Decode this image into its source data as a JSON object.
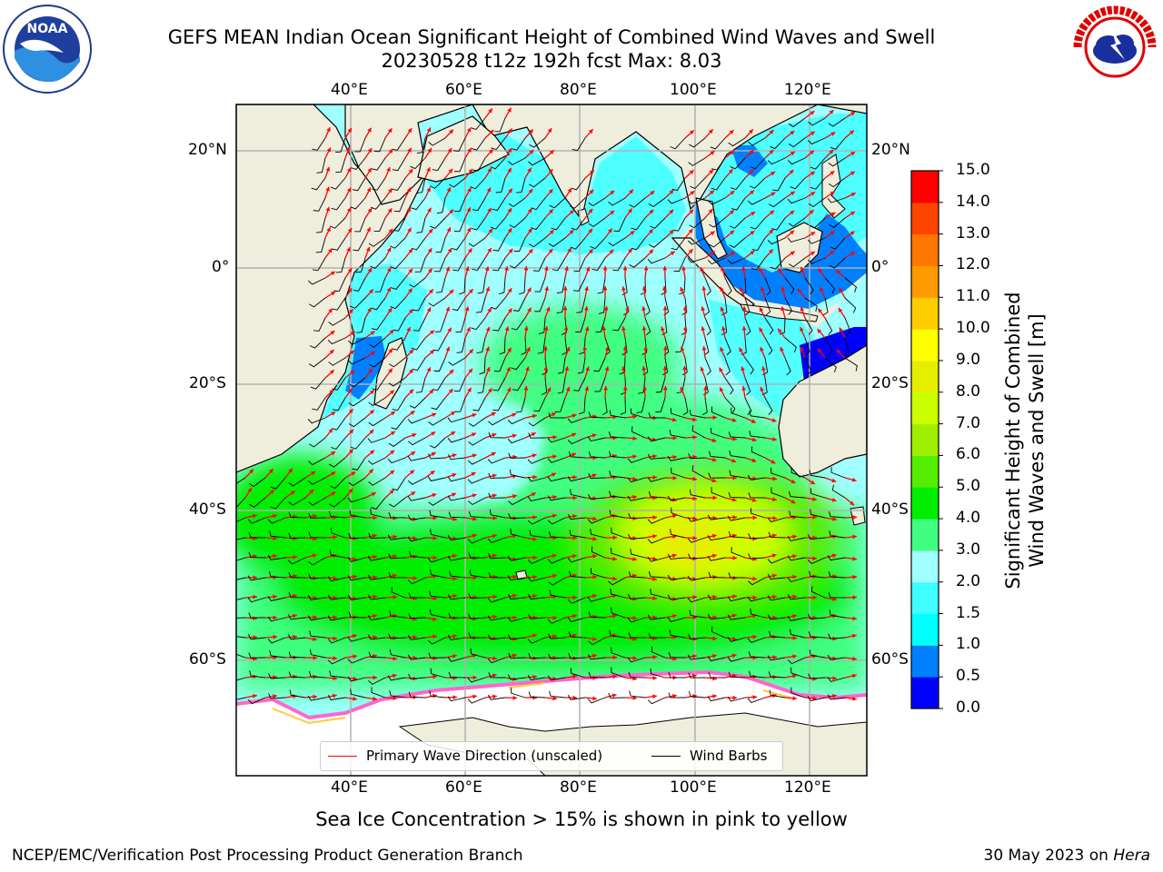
{
  "header": {
    "title_line1": "GEFS MEAN Indian Ocean Significant Height of Combined Wind Waves and Swell",
    "title_line2": "20230528 t12z 192h fcst   Max: 8.03"
  },
  "logos": {
    "left": {
      "name": "noaa-logo",
      "text": "NOAA",
      "ring_text": "NATIONAL OCEANIC AND ATMOSPHERIC ADMINISTRATION · U.S. DEPARTMENT OF COMMERCE"
    },
    "right": {
      "name": "nws-logo",
      "ring_text": "NATIONAL WEATHER SERVICE"
    }
  },
  "map": {
    "lon_ticks_top": [
      "40°E",
      "60°E",
      "80°E",
      "100°E",
      "120°E"
    ],
    "lon_ticks_bottom": [
      "40°E",
      "60°E",
      "80°E",
      "100°E",
      "120°E"
    ],
    "lat_ticks_left": [
      "20°N",
      "0°",
      "20°S",
      "40°S",
      "60°S"
    ],
    "lat_ticks_right": [
      "20°N",
      "0°",
      "20°S",
      "40°S",
      "60°S"
    ],
    "extent": {
      "lon_min": 20,
      "lon_max": 130,
      "lat_min": -78,
      "lat_max": 27
    },
    "colors": {
      "land": "#efeedc",
      "ice": "#ffffff",
      "grid": "#b0b0b0",
      "wave_arrow": "#ff0000",
      "wind_barb": "#000000"
    }
  },
  "colorbar": {
    "label_line1": "Significant Height of Combined",
    "label_line2": "Wind Waves and Swell [m]",
    "ticks": [
      "0.0",
      "0.5",
      "1.0",
      "1.5",
      "2.0",
      "3.0",
      "4.0",
      "5.0",
      "6.0",
      "7.0",
      "8.0",
      "9.0",
      "10.0",
      "11.0",
      "12.0",
      "13.0",
      "14.0",
      "15.0"
    ],
    "colors": [
      "#0000ff",
      "#0080ff",
      "#00ffff",
      "#40ffff",
      "#a0ffff",
      "#40ff80",
      "#00ee00",
      "#55ee00",
      "#a0ee00",
      "#ccff00",
      "#e6ee00",
      "#ffff00",
      "#ffcc00",
      "#ff9900",
      "#ff7700",
      "#ff4400",
      "#ff0000"
    ]
  },
  "legend": {
    "primary_wave_label": "Primary Wave Direction (unscaled)",
    "wind_barb_label": "Wind Barbs"
  },
  "caption": "Sea Ice Concentration > 15% is shown in pink to yellow",
  "footer": {
    "left": "NCEP/EMC/Verification Post Processing Product Generation Branch",
    "right_date": "30 May 2023 on ",
    "right_host": "Hera"
  }
}
